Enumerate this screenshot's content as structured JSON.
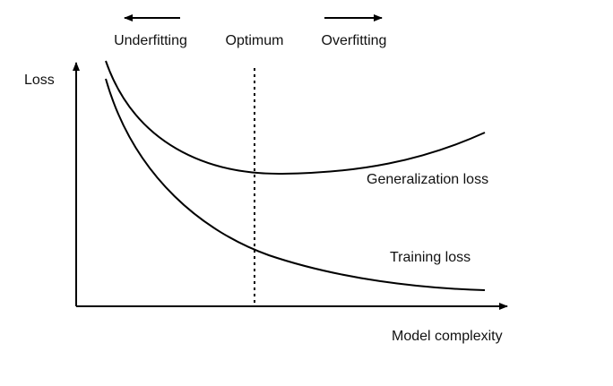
{
  "axes": {
    "y_label": "Loss",
    "x_label": "Model complexity"
  },
  "regions": [
    "Underfitting",
    "Optimum",
    "Overfitting"
  ],
  "curves": [
    {
      "label": "Generalization loss"
    },
    {
      "label": "Training loss"
    }
  ]
}
